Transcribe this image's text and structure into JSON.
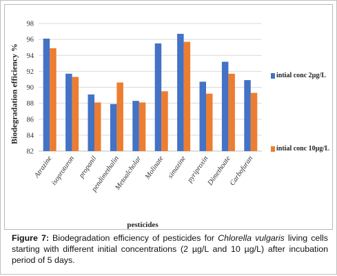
{
  "chart_data": {
    "type": "bar",
    "ylabel": "Biodegradation efficiency %",
    "xlabel": "pesticides",
    "ylim": [
      82,
      98
    ],
    "ytick_step": 2,
    "grid": true,
    "legend_position": "right",
    "categories": [
      "Atrazine",
      "isoproturon",
      "propanil",
      "pendimethalin",
      "Metoalcholar",
      "Molinate",
      "simazine",
      "pyriproxin",
      "Dimethoate",
      "Carbofuran"
    ],
    "series": [
      {
        "name": "intial conc 2µg/L",
        "color": "#4472c4",
        "values": [
          96.1,
          91.7,
          89.1,
          87.9,
          88.3,
          95.5,
          96.7,
          90.7,
          93.2,
          90.9
        ]
      },
      {
        "name": "intial conc 10µg/L",
        "color": "#ed7d31",
        "values": [
          94.9,
          91.3,
          88.1,
          90.6,
          88.1,
          89.5,
          95.7,
          89.2,
          91.7,
          89.3
        ]
      }
    ]
  },
  "caption": {
    "label": "Figure 7:",
    "text_before": " Biodegradation efficiency of pesticides for ",
    "organism": "Chlorella vulgaris",
    "text_after": " living cells starting with different initial concentrations (2 µg/L and 10 µg/L) after incubation period of 5 days."
  }
}
